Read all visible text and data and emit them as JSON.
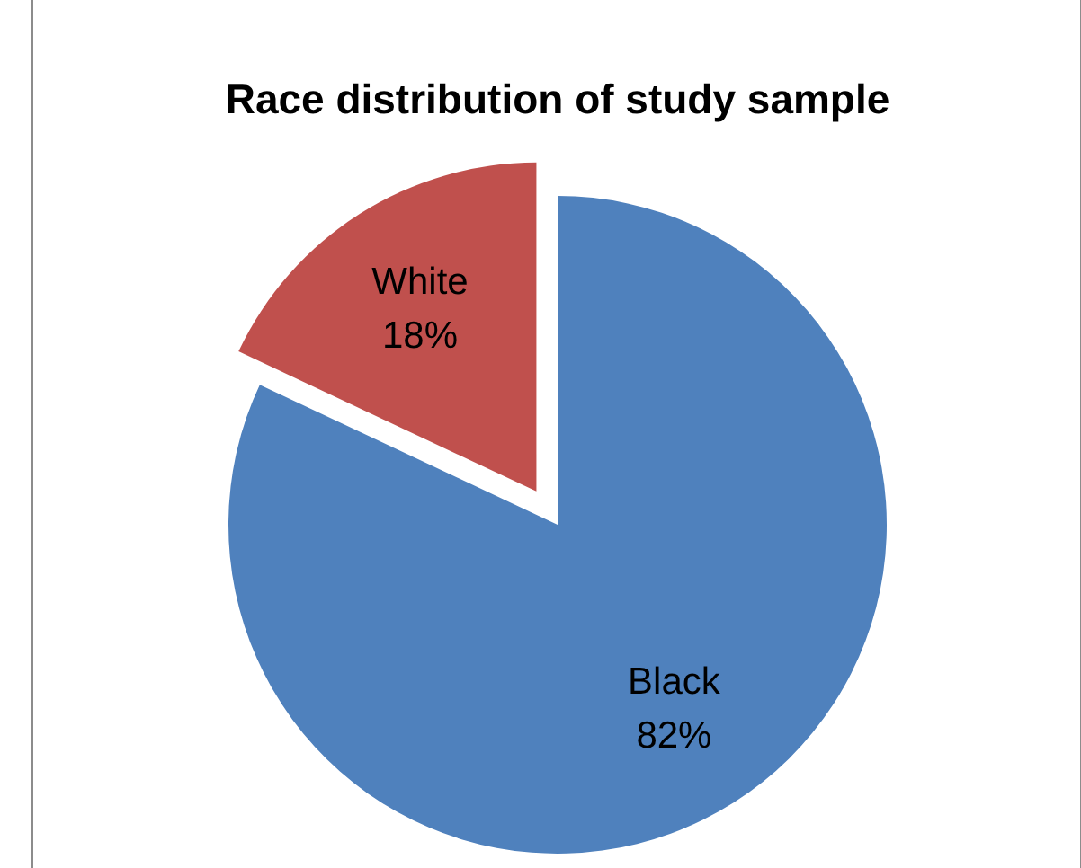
{
  "chart_data": {
    "type": "pie",
    "title": "Race distribution of study sample",
    "categories": [
      "Black",
      "White"
    ],
    "values": [
      82,
      18
    ],
    "value_labels": [
      "82%",
      "18%"
    ],
    "colors": [
      "#4f81bd",
      "#c0504d"
    ]
  }
}
